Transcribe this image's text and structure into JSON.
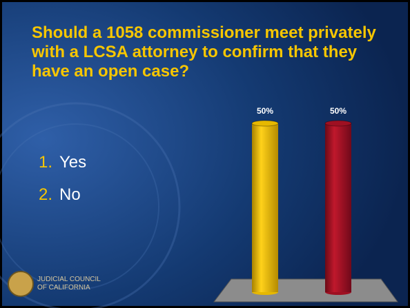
{
  "chart_data": {
    "type": "bar",
    "title": "Should a 1058 commissioner meet privately with a LCSA attorney to confirm that they have an open case?",
    "categories": [
      null,
      null
    ],
    "values": [
      50,
      50
    ],
    "value_labels": [
      "50%",
      "50%"
    ],
    "colors": [
      "#e6b800",
      "#9e1022"
    ]
  },
  "options": [
    {
      "number": "1.",
      "label": "Yes"
    },
    {
      "number": "2.",
      "label": "No"
    }
  ],
  "logo": [
    "JUDICIAL COUNCIL",
    "OF CALIFORNIA"
  ]
}
